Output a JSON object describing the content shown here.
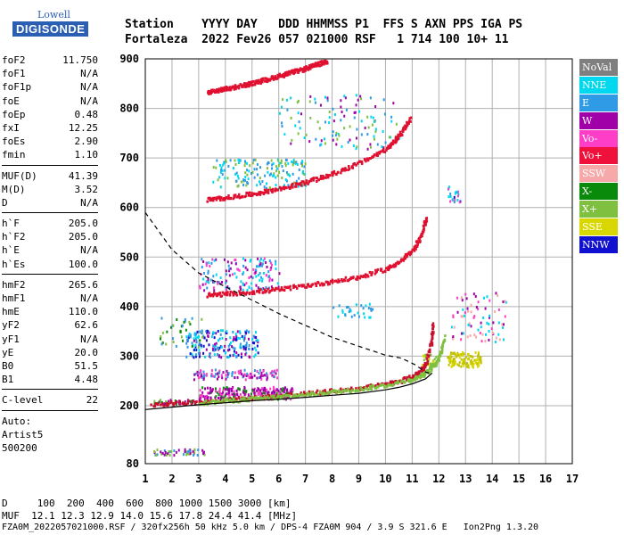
{
  "logo": {
    "brand": "Lowell",
    "product": "DIGISONDE"
  },
  "header": {
    "line1": "Station    YYYY DAY   DDD HHMMSS P1  FFS S AXN PPS IGA PS",
    "line2": "Fortaleza  2022 Fev26 057 021000 RSF   1 714 100 10+ 11"
  },
  "params": {
    "group1": [
      {
        "name": "foF2",
        "value": "11.750"
      },
      {
        "name": "foF1",
        "value": "N/A"
      },
      {
        "name": "foF1p",
        "value": "N/A"
      },
      {
        "name": "foE",
        "value": "N/A"
      },
      {
        "name": "foEp",
        "value": "0.48"
      },
      {
        "name": "fxI",
        "value": "12.25"
      },
      {
        "name": "foEs",
        "value": "2.90"
      },
      {
        "name": "fmin",
        "value": "1.10"
      }
    ],
    "group2": [
      {
        "name": "MUF(D)",
        "value": "41.39"
      },
      {
        "name": "M(D)",
        "value": "3.52"
      },
      {
        "name": "D",
        "value": "N/A"
      }
    ],
    "group3": [
      {
        "name": "h`F",
        "value": "205.0"
      },
      {
        "name": "h`F2",
        "value": "205.0"
      },
      {
        "name": "h`E",
        "value": "N/A"
      },
      {
        "name": "h`Es",
        "value": "100.0"
      }
    ],
    "group4": [
      {
        "name": "hmF2",
        "value": "265.6"
      },
      {
        "name": "hmF1",
        "value": "N/A"
      },
      {
        "name": "hmE",
        "value": "110.0"
      },
      {
        "name": "yF2",
        "value": "62.6"
      },
      {
        "name": "yF1",
        "value": "N/A"
      },
      {
        "name": "yE",
        "value": "20.0"
      },
      {
        "name": "B0",
        "value": "51.5"
      },
      {
        "name": "B1",
        "value": "4.48"
      }
    ],
    "group5": [
      {
        "name": "C-level",
        "value": "22"
      }
    ],
    "auto": [
      "Auto:",
      "Artist5",
      "500200"
    ]
  },
  "legend": [
    {
      "label": "NoVal",
      "color": "#7f7f7f"
    },
    {
      "label": "NNE",
      "color": "#00d8f0"
    },
    {
      "label": "E",
      "color": "#2f9ae6"
    },
    {
      "label": "W",
      "color": "#a000a8"
    },
    {
      "label": "Vo-",
      "color": "#ff3ec8"
    },
    {
      "label": "Vo+",
      "color": "#f0103c"
    },
    {
      "label": "SSW",
      "color": "#f7a8a8"
    },
    {
      "label": "X-",
      "color": "#0a8a0a"
    },
    {
      "label": "X+",
      "color": "#80c040"
    },
    {
      "label": "SSE",
      "color": "#d8d800"
    },
    {
      "label": "NNW",
      "color": "#1010d0"
    }
  ],
  "footer": {
    "line1": "D     100  200  400  600  800 1000 1500 3000 [km]",
    "line2": "MUF  12.1 12.3 12.9 14.0 15.6 17.8 24.4 41.4 [MHz]",
    "line3": "FZA0M_2022057021000.RSF / 320fx256h 50 kHz 5.0 km / DPS-4 FZA0M 904 / 3.9 S 321.6 E   Ion2Png 1.3.20"
  },
  "chart_data": {
    "type": "scatter",
    "xlim": [
      1,
      17
    ],
    "ylim": [
      80,
      900
    ],
    "xticks": [
      1,
      2,
      3,
      4,
      5,
      6,
      7,
      8,
      9,
      10,
      11,
      12,
      13,
      14,
      15,
      16,
      17
    ],
    "yticks": [
      80,
      200,
      300,
      400,
      500,
      600,
      700,
      800,
      900
    ],
    "grid": true,
    "traces": [
      {
        "name": "O-trace 1st hop",
        "color": "#c8102e",
        "points": [
          [
            1.2,
            205
          ],
          [
            2,
            207
          ],
          [
            3,
            210
          ],
          [
            4,
            214
          ],
          [
            5,
            218
          ],
          [
            6,
            222
          ],
          [
            7,
            227
          ],
          [
            8,
            232
          ],
          [
            9,
            238
          ],
          [
            10,
            246
          ],
          [
            10.5,
            252
          ],
          [
            11,
            262
          ],
          [
            11.3,
            272
          ],
          [
            11.5,
            290
          ],
          [
            11.7,
            330
          ],
          [
            11.75,
            365
          ]
        ]
      },
      {
        "name": "O-trace 2nd hop",
        "color": "#e01030",
        "points": [
          [
            3.3,
            425
          ],
          [
            4,
            428
          ],
          [
            5,
            432
          ],
          [
            6,
            437
          ],
          [
            7,
            445
          ],
          [
            8,
            453
          ],
          [
            9,
            462
          ],
          [
            10,
            478
          ],
          [
            10.5,
            493
          ],
          [
            11,
            515
          ],
          [
            11.3,
            545
          ],
          [
            11.5,
            580
          ]
        ]
      },
      {
        "name": "O-trace 3rd hop",
        "color": "#e01030",
        "points": [
          [
            3.3,
            618
          ],
          [
            4,
            622
          ],
          [
            5,
            630
          ],
          [
            6,
            640
          ],
          [
            7,
            653
          ],
          [
            8,
            670
          ],
          [
            9,
            692
          ],
          [
            10,
            720
          ],
          [
            10.5,
            748
          ],
          [
            10.9,
            780
          ]
        ]
      },
      {
        "name": "O-trace 4th hop",
        "color": "#e01030",
        "points": [
          [
            3.3,
            835
          ],
          [
            4,
            842
          ],
          [
            5,
            853
          ],
          [
            6,
            868
          ],
          [
            7,
            883
          ],
          [
            7.8,
            898
          ]
        ]
      },
      {
        "name": "X-trace 1st hop",
        "color": "#80c040",
        "points": [
          [
            3,
            208
          ],
          [
            4,
            212
          ],
          [
            5,
            216
          ],
          [
            6,
            220
          ],
          [
            7,
            225
          ],
          [
            8,
            230
          ],
          [
            9,
            236
          ],
          [
            10,
            244
          ],
          [
            11,
            256
          ],
          [
            11.5,
            268
          ],
          [
            11.9,
            290
          ],
          [
            12.2,
            340
          ]
        ]
      }
    ],
    "profile": {
      "name": "electron density profile",
      "points": [
        [
          1,
          192
        ],
        [
          2,
          197
        ],
        [
          3,
          202
        ],
        [
          4,
          206
        ],
        [
          5,
          210
        ],
        [
          6,
          213
        ],
        [
          7,
          217
        ],
        [
          8,
          221
        ],
        [
          9,
          225
        ],
        [
          10,
          232
        ],
        [
          10.5,
          237
        ],
        [
          11,
          244
        ],
        [
          11.5,
          254
        ],
        [
          11.75,
          266
        ]
      ]
    },
    "muf_curve": {
      "name": "MUF vs distance",
      "points": [
        [
          1,
          590
        ],
        [
          2,
          515
        ],
        [
          3,
          468
        ],
        [
          4,
          440
        ],
        [
          5,
          413
        ],
        [
          6,
          386
        ],
        [
          7,
          362
        ],
        [
          8,
          338
        ],
        [
          9,
          320
        ],
        [
          10,
          302
        ],
        [
          10.6,
          296
        ],
        [
          11.1,
          283
        ],
        [
          11.5,
          268
        ],
        [
          11.75,
          264
        ]
      ]
    },
    "echo_clusters": [
      {
        "xr": [
          3,
          6.5
        ],
        "yr": [
          215,
          240
        ],
        "n": 260,
        "colors": [
          "#a000a8",
          "#ff3ec8",
          "#0a8a0a",
          "#a000a8"
        ]
      },
      {
        "xr": [
          2.8,
          6
        ],
        "yr": [
          255,
          275
        ],
        "n": 110,
        "colors": [
          "#a000a8",
          "#ff3ec8",
          "#2f9ae6"
        ]
      },
      {
        "xr": [
          2.5,
          5.2
        ],
        "yr": [
          300,
          355
        ],
        "n": 200,
        "colors": [
          "#2f9ae6",
          "#00d8f0",
          "#a000a8",
          "#1010d0"
        ]
      },
      {
        "xr": [
          1.5,
          3.2
        ],
        "yr": [
          320,
          380
        ],
        "n": 40,
        "colors": [
          "#80c040",
          "#0a8a0a",
          "#2f9ae6"
        ]
      },
      {
        "xr": [
          3,
          6
        ],
        "yr": [
          435,
          500
        ],
        "n": 150,
        "colors": [
          "#a000a8",
          "#ff3ec8",
          "#00d8f0",
          "#2f9ae6"
        ]
      },
      {
        "xr": [
          3.5,
          7
        ],
        "yr": [
          640,
          700
        ],
        "n": 160,
        "colors": [
          "#2f9ae6",
          "#00d8f0",
          "#80c040"
        ]
      },
      {
        "xr": [
          6,
          10.5
        ],
        "yr": [
          720,
          830
        ],
        "n": 120,
        "colors": [
          "#00d8f0",
          "#2f9ae6",
          "#a000a8",
          "#80c040"
        ]
      },
      {
        "xr": [
          12.3,
          13.6
        ],
        "yr": [
          280,
          310
        ],
        "n": 110,
        "colors": [
          "#d8d800",
          "#c0c000"
        ]
      },
      {
        "xr": [
          11.3,
          12
        ],
        "yr": [
          280,
          305
        ],
        "n": 30,
        "colors": [
          "#d8d800",
          "#80c040"
        ]
      },
      {
        "xr": [
          12.4,
          14.5
        ],
        "yr": [
          330,
          430
        ],
        "n": 80,
        "colors": [
          "#a000a8",
          "#ff3ec8",
          "#00d8f0",
          "#f7a8a8"
        ]
      },
      {
        "xr": [
          12.3,
          12.8
        ],
        "yr": [
          610,
          645
        ],
        "n": 22,
        "colors": [
          "#00d8f0",
          "#ff3ec8",
          "#2f9ae6",
          "#1010d0"
        ]
      },
      {
        "xr": [
          1.3,
          3.2
        ],
        "yr": [
          100,
          112
        ],
        "n": 50,
        "colors": [
          "#80c040",
          "#2f9ae6",
          "#a000a8"
        ]
      },
      {
        "xr": [
          8,
          9.5
        ],
        "yr": [
          380,
          410
        ],
        "n": 30,
        "colors": [
          "#00d8f0",
          "#2f9ae6"
        ]
      },
      {
        "xr": [
          1.3,
          3
        ],
        "yr": [
          205,
          215
        ],
        "n": 40,
        "colors": [
          "#0a8a0a",
          "#80c040",
          "#a000a8"
        ]
      }
    ]
  }
}
